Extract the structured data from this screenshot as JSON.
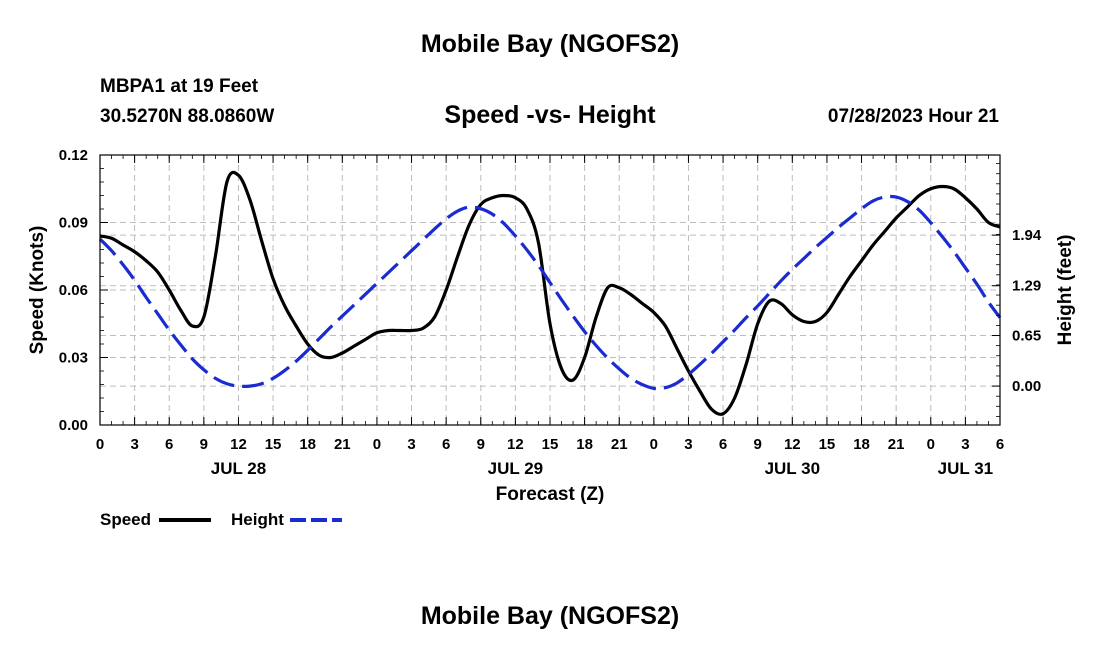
{
  "page": {
    "title": "Mobile Bay (NGOFS2)",
    "station": "MBPA1 at 19 Feet",
    "coords": "30.5270N  88.0860W",
    "subtitle": "Speed -vs- Height",
    "datetime": "07/28/2023 Hour 21",
    "footer_title": "Mobile Bay (NGOFS2)"
  },
  "legend": {
    "speed_label": "Speed",
    "height_label": "Height"
  },
  "chart_data": {
    "type": "line",
    "xlabel": "Forecast (Z)",
    "ylabel": "Speed (Knots)",
    "ylabel_right": "Height (feet)",
    "x_range": [
      0,
      78
    ],
    "x_unit": "hours from 00Z Jul 28, 2023",
    "x_tick_labels": [
      "0",
      "3",
      "6",
      "9",
      "12",
      "15",
      "18",
      "21",
      "0",
      "3",
      "6",
      "9",
      "12",
      "15",
      "18",
      "21",
      "0",
      "3",
      "6",
      "9",
      "12",
      "15",
      "18",
      "21",
      "0",
      "3",
      "6"
    ],
    "date_labels": [
      {
        "label": "JUL 28",
        "x": 12
      },
      {
        "label": "JUL 29",
        "x": 36
      },
      {
        "label": "JUL 30",
        "x": 60
      },
      {
        "label": "JUL 31",
        "x": 75
      }
    ],
    "ylim": [
      0,
      0.12
    ],
    "y_ticks": [
      "0.00",
      "0.03",
      "0.06",
      "0.09",
      "0.12"
    ],
    "ylim_right": [
      -0.5,
      2.97
    ],
    "y_ticks_right": [
      "0.00",
      "0.65",
      "1.29",
      "1.94"
    ],
    "grid": true,
    "series": [
      {
        "name": "Speed",
        "color": "#000000",
        "dash": "solid",
        "axis": "left",
        "x": [
          0,
          1,
          2,
          3,
          4,
          5,
          6,
          7,
          8,
          9,
          10,
          11,
          12,
          13,
          14,
          15,
          16,
          17,
          18,
          19,
          20,
          21,
          22,
          23,
          24,
          25,
          26,
          27,
          28,
          29,
          30,
          31,
          32,
          33,
          34,
          35,
          36,
          37,
          38,
          39,
          40,
          41,
          42,
          43,
          44,
          45,
          46,
          47,
          48,
          49,
          50,
          51,
          52,
          53,
          54,
          55,
          56,
          57,
          58,
          59,
          60,
          61,
          62,
          63,
          64,
          65,
          66,
          67,
          68,
          69,
          70,
          71,
          72,
          73,
          74,
          75,
          76,
          77,
          78
        ],
        "values": [
          0.084,
          0.083,
          0.08,
          0.077,
          0.073,
          0.068,
          0.06,
          0.051,
          0.044,
          0.048,
          0.075,
          0.108,
          0.111,
          0.1,
          0.082,
          0.065,
          0.053,
          0.044,
          0.036,
          0.031,
          0.03,
          0.032,
          0.035,
          0.038,
          0.041,
          0.042,
          0.042,
          0.042,
          0.043,
          0.048,
          0.06,
          0.075,
          0.089,
          0.098,
          0.101,
          0.102,
          0.101,
          0.096,
          0.081,
          0.045,
          0.025,
          0.02,
          0.03,
          0.048,
          0.061,
          0.061,
          0.058,
          0.054,
          0.05,
          0.044,
          0.034,
          0.024,
          0.015,
          0.007,
          0.005,
          0.012,
          0.027,
          0.045,
          0.055,
          0.054,
          0.049,
          0.046,
          0.046,
          0.05,
          0.058,
          0.066,
          0.073,
          0.08,
          0.086,
          0.092,
          0.097,
          0.102,
          0.105,
          0.106,
          0.105,
          0.101,
          0.096,
          0.09,
          0.088
        ]
      },
      {
        "name": "Height",
        "color": "#1a2bd1",
        "dash": "dashed",
        "axis": "right",
        "x": [
          0,
          1,
          2,
          3,
          4,
          5,
          6,
          7,
          8,
          9,
          10,
          11,
          12,
          13,
          14,
          15,
          16,
          17,
          18,
          19,
          20,
          21,
          22,
          23,
          24,
          25,
          26,
          27,
          28,
          29,
          30,
          31,
          32,
          33,
          34,
          35,
          36,
          37,
          38,
          39,
          40,
          41,
          42,
          43,
          44,
          45,
          46,
          47,
          48,
          49,
          50,
          51,
          52,
          53,
          54,
          55,
          56,
          57,
          58,
          59,
          60,
          61,
          62,
          63,
          64,
          65,
          66,
          67,
          68,
          69,
          70,
          71,
          72,
          73,
          74,
          75,
          76,
          77,
          78
        ],
        "values": [
          1.89,
          1.74,
          1.56,
          1.36,
          1.14,
          0.93,
          0.72,
          0.53,
          0.35,
          0.21,
          0.1,
          0.03,
          0.0,
          0.0,
          0.03,
          0.1,
          0.2,
          0.32,
          0.46,
          0.61,
          0.76,
          0.9,
          1.04,
          1.18,
          1.32,
          1.46,
          1.6,
          1.74,
          1.88,
          2.02,
          2.15,
          2.25,
          2.3,
          2.28,
          2.21,
          2.09,
          1.93,
          1.75,
          1.55,
          1.33,
          1.11,
          0.9,
          0.7,
          0.52,
          0.36,
          0.22,
          0.1,
          0.02,
          -0.03,
          -0.02,
          0.04,
          0.15,
          0.28,
          0.42,
          0.57,
          0.72,
          0.88,
          1.03,
          1.19,
          1.35,
          1.5,
          1.64,
          1.78,
          1.91,
          2.04,
          2.16,
          2.28,
          2.38,
          2.43,
          2.43,
          2.37,
          2.26,
          2.1,
          1.92,
          1.73,
          1.52,
          1.31,
          1.08,
          0.88
        ]
      }
    ]
  }
}
